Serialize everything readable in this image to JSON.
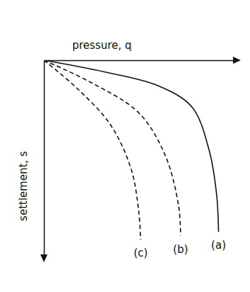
{
  "chart_data": {
    "type": "line",
    "x_label": "pressure, q",
    "y_label": "settlement, s",
    "xlim": [
      0,
      10
    ],
    "ylim": [
      0,
      10
    ],
    "tick_labels": false,
    "series": [
      {
        "name": "(a)",
        "color": "#111111",
        "line_style": "solid",
        "x": [
          0,
          3.2,
          6.0,
          7.8,
          8.7,
          9.1,
          9.2
        ],
        "values": [
          0,
          0.6,
          1.3,
          2.4,
          4.6,
          6.9,
          8.8
        ]
      },
      {
        "name": "(b)",
        "color": "#111111",
        "line_style": "dashed",
        "x": [
          0,
          2.4,
          5.0,
          6.4,
          7.1,
          7.2
        ],
        "values": [
          0,
          1.1,
          2.7,
          4.9,
          7.5,
          9.0
        ]
      },
      {
        "name": "(c)",
        "color": "#111111",
        "line_style": "dashed",
        "x": [
          0,
          1.7,
          3.5,
          4.6,
          5.0,
          5.1
        ],
        "values": [
          0,
          1.4,
          3.3,
          5.6,
          7.8,
          9.2
        ]
      }
    ]
  }
}
